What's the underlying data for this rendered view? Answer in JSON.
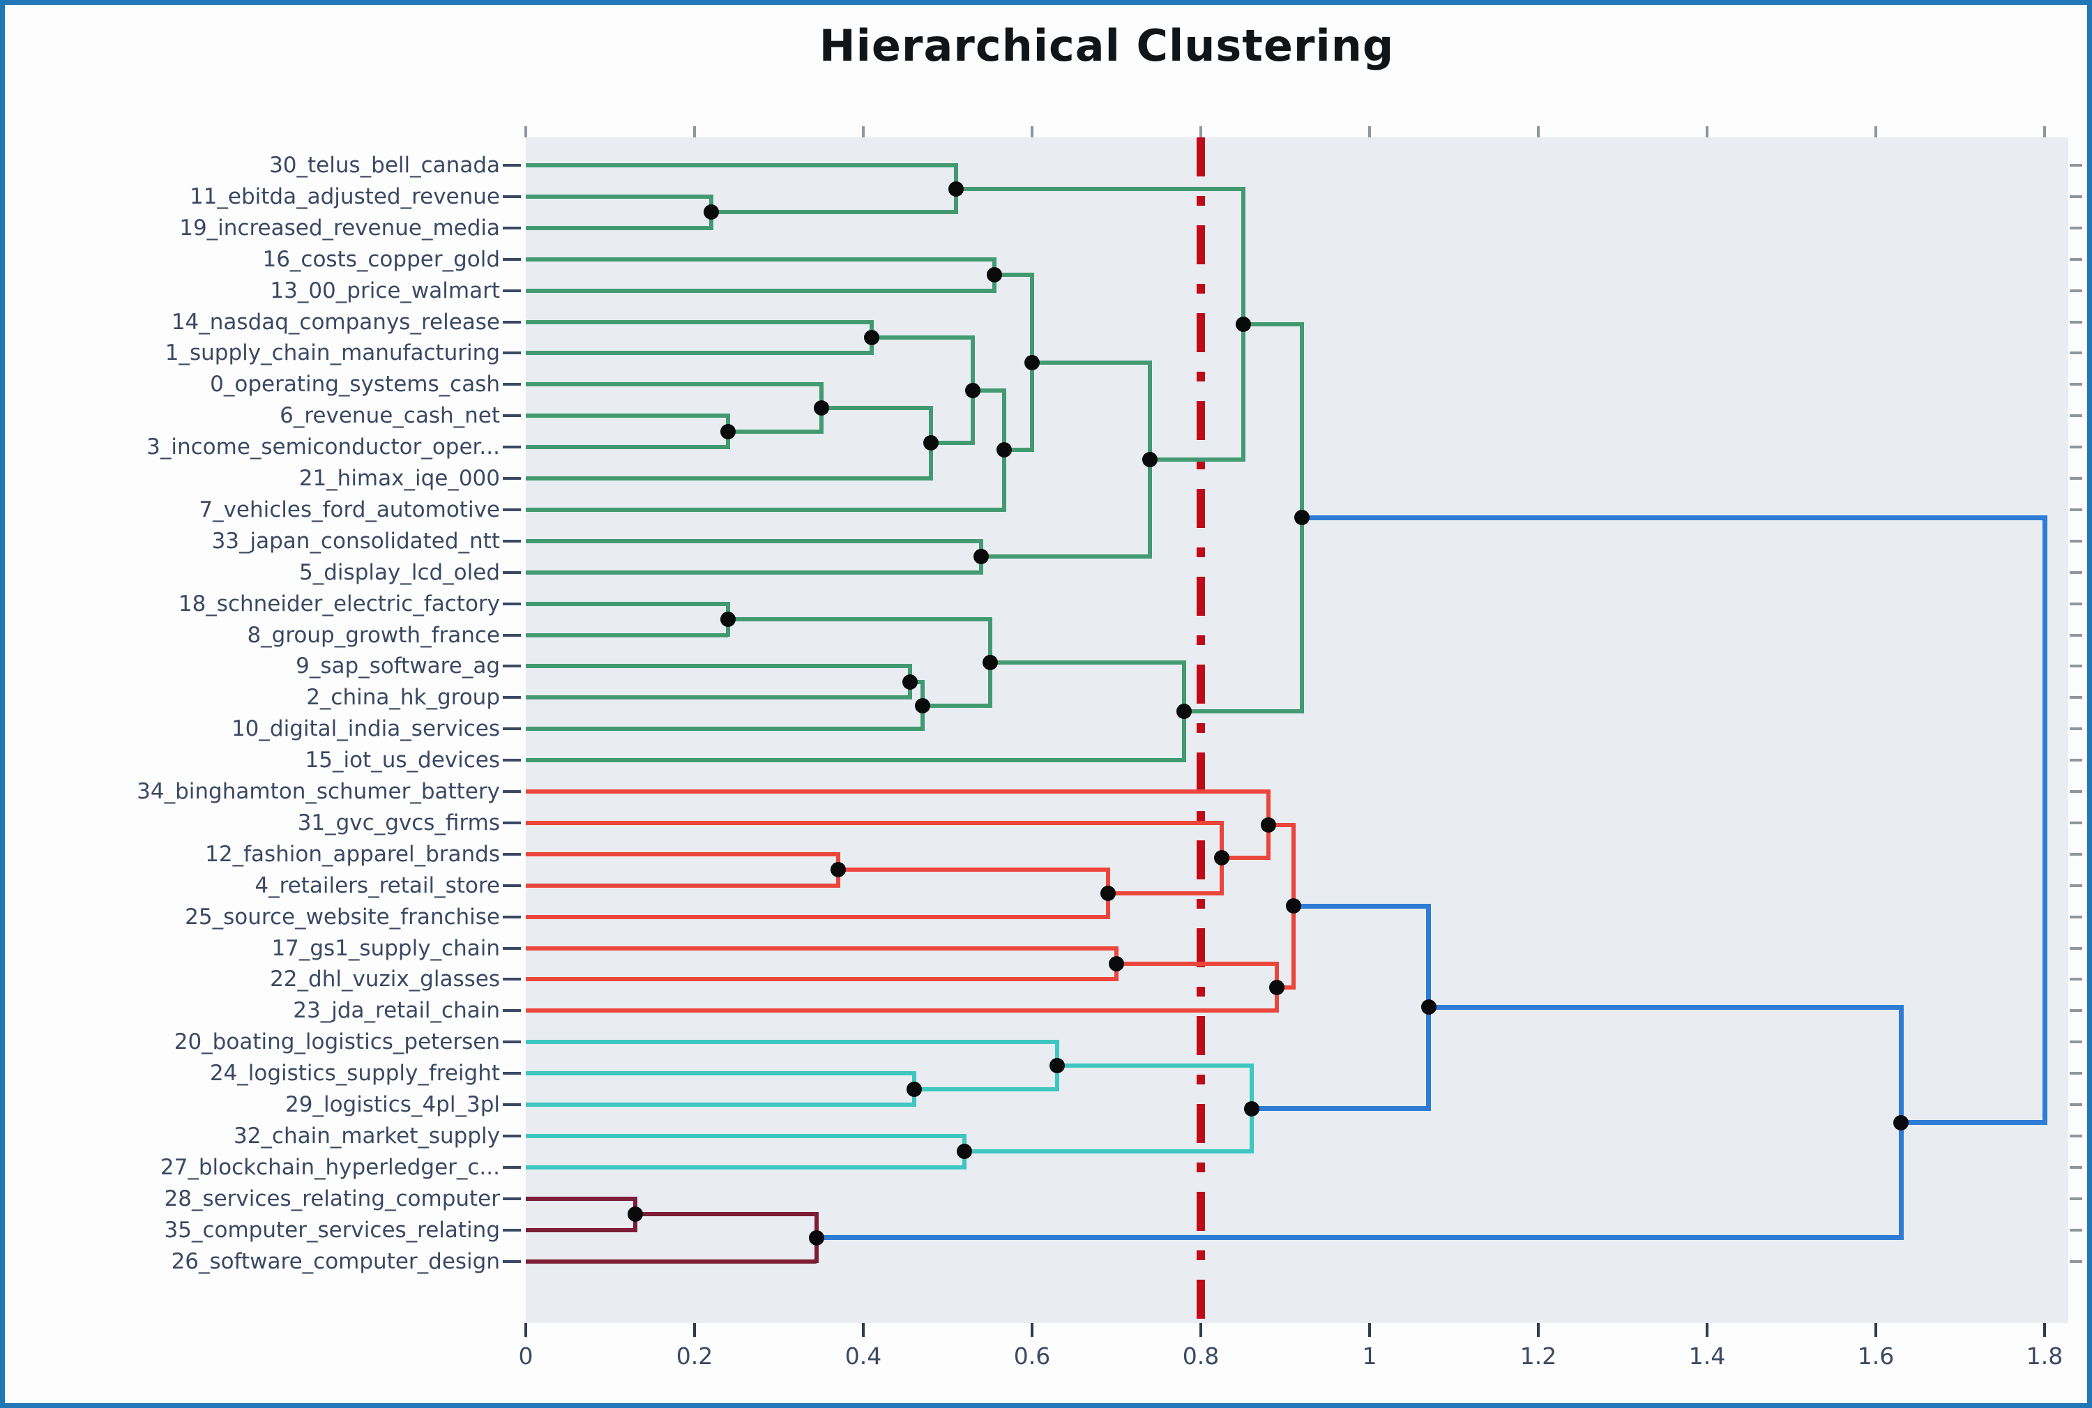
{
  "title": "Hierarchical Clustering",
  "x_axis": {
    "ticks": [
      {
        "v": 0.0,
        "label": "0"
      },
      {
        "v": 0.2,
        "label": "0.2"
      },
      {
        "v": 0.4,
        "label": "0.4"
      },
      {
        "v": 0.6,
        "label": "0.6"
      },
      {
        "v": 0.8,
        "label": "0.8"
      },
      {
        "v": 1.0,
        "label": "1"
      },
      {
        "v": 1.2,
        "label": "1.2"
      },
      {
        "v": 1.4,
        "label": "1.4"
      },
      {
        "v": 1.6,
        "label": "1.6"
      },
      {
        "v": 1.8,
        "label": "1.8"
      }
    ]
  },
  "threshold_line": {
    "value": 0.8,
    "color": "#c00a18",
    "style": "dash-dot"
  },
  "colors": {
    "frame_border": "#2277b9",
    "plot_background": "#e9edf1",
    "label_text": "#3a4963",
    "title_text": "#111518",
    "merge_dot": "#0a0a0a",
    "cluster_green": "#429a71",
    "cluster_red": "#ec453c",
    "cluster_cyan": "#3ec6c0",
    "cluster_maroon": "#7d1d36",
    "link_blue": "#2d7cd6"
  },
  "chart_data": {
    "type": "dendrogram",
    "orientation": "horizontal_left_labels",
    "title": "Hierarchical Clustering",
    "xlim": [
      0,
      1.83
    ],
    "grid": false,
    "legend": null,
    "color_threshold": 0.8,
    "leaves": [
      "30_telus_bell_canada",
      "11_ebitda_adjusted_revenue",
      "19_increased_revenue_media",
      "16_costs_copper_gold",
      "13_00_price_walmart",
      "14_nasdaq_companys_release",
      "1_supply_chain_manufacturing",
      "0_operating_systems_cash",
      "6_revenue_cash_net",
      "3_income_semiconductor_oper...",
      "21_himax_iqe_000",
      "7_vehicles_ford_automotive",
      "33_japan_consolidated_ntt",
      "5_display_lcd_oled",
      "18_schneider_electric_factory",
      "8_group_growth_france",
      "9_sap_software_ag",
      "2_china_hk_group",
      "10_digital_india_services",
      "15_iot_us_devices",
      "34_binghamton_schumer_battery",
      "31_gvc_gvcs_firms",
      "12_fashion_apparel_brands",
      "4_retailers_retail_store",
      "25_source_website_franchise",
      "17_gs1_supply_chain",
      "22_dhl_vuzix_glasses",
      "23_jda_retail_chain",
      "20_boating_logistics_petersen",
      "24_logistics_supply_freight",
      "29_logistics_4pl_3pl",
      "32_chain_market_supply",
      "27_blockchain_hyperledger_c...",
      "28_services_relating_computer",
      "35_computer_services_relating",
      "26_software_computer_design"
    ],
    "merges": [
      {
        "id": "g1",
        "a": "L1",
        "b": "L2",
        "d": 0.22,
        "c": "green"
      },
      {
        "id": "g2",
        "a": "L0",
        "b": "g1",
        "d": 0.51,
        "c": "green"
      },
      {
        "id": "g3",
        "a": "L3",
        "b": "L4",
        "d": 0.555,
        "c": "green"
      },
      {
        "id": "g4",
        "a": "L5",
        "b": "L6",
        "d": 0.41,
        "c": "green"
      },
      {
        "id": "g5",
        "a": "L8",
        "b": "L9",
        "d": 0.24,
        "c": "green"
      },
      {
        "id": "g6",
        "a": "L7",
        "b": "g5",
        "d": 0.35,
        "c": "green"
      },
      {
        "id": "g7",
        "a": "g6",
        "b": "L10",
        "d": 0.48,
        "c": "green"
      },
      {
        "id": "g8",
        "a": "g4",
        "b": "g7",
        "d": 0.53,
        "c": "green"
      },
      {
        "id": "g8b",
        "a": "g8",
        "b": "L11",
        "d": 0.567,
        "c": "green"
      },
      {
        "id": "g9",
        "a": "g3",
        "b": "g8b",
        "d": 0.6,
        "c": "green"
      },
      {
        "id": "g10",
        "a": "L12",
        "b": "L13",
        "d": 0.54,
        "c": "green"
      },
      {
        "id": "g12",
        "a": "g9",
        "b": "g10",
        "d": 0.74,
        "c": "green"
      },
      {
        "id": "g13",
        "a": "g2",
        "b": "g12",
        "d": 0.85,
        "c": "green"
      },
      {
        "id": "g14",
        "a": "L14",
        "b": "L15",
        "d": 0.24,
        "c": "green"
      },
      {
        "id": "g15",
        "a": "L16",
        "b": "L17",
        "d": 0.455,
        "c": "green"
      },
      {
        "id": "g16",
        "a": "g15",
        "b": "L18",
        "d": 0.47,
        "c": "green"
      },
      {
        "id": "g17",
        "a": "g14",
        "b": "g16",
        "d": 0.55,
        "c": "green"
      },
      {
        "id": "g18",
        "a": "g17",
        "b": "L19",
        "d": 0.78,
        "c": "green"
      },
      {
        "id": "g19",
        "a": "g13",
        "b": "g18",
        "d": 0.92,
        "c": "green"
      },
      {
        "id": "r1",
        "a": "L22",
        "b": "L23",
        "d": 0.37,
        "c": "red"
      },
      {
        "id": "r2",
        "a": "r1",
        "b": "L24",
        "d": 0.69,
        "c": "red"
      },
      {
        "id": "r3",
        "a": "L21",
        "b": "r2",
        "d": 0.825,
        "c": "red"
      },
      {
        "id": "r4",
        "a": "L20",
        "b": "r3",
        "d": 0.88,
        "c": "red"
      },
      {
        "id": "r5",
        "a": "L25",
        "b": "L26",
        "d": 0.7,
        "c": "red"
      },
      {
        "id": "r6",
        "a": "r5",
        "b": "L27",
        "d": 0.89,
        "c": "red"
      },
      {
        "id": "r7",
        "a": "r4",
        "b": "r6",
        "d": 0.91,
        "c": "red"
      },
      {
        "id": "c1",
        "a": "L29",
        "b": "L30",
        "d": 0.46,
        "c": "cyan"
      },
      {
        "id": "c2",
        "a": "L28",
        "b": "c1",
        "d": 0.63,
        "c": "cyan"
      },
      {
        "id": "c3",
        "a": "L31",
        "b": "L32",
        "d": 0.52,
        "c": "cyan"
      },
      {
        "id": "c4",
        "a": "c2",
        "b": "c3",
        "d": 0.86,
        "c": "cyan"
      },
      {
        "id": "m1",
        "a": "L33",
        "b": "L34",
        "d": 0.13,
        "c": "maroon"
      },
      {
        "id": "m2",
        "a": "m1",
        "b": "L35",
        "d": 0.345,
        "c": "maroon"
      },
      {
        "id": "x1",
        "a": "r7",
        "b": "c4",
        "d": 1.07,
        "c": "blue"
      },
      {
        "id": "x2",
        "a": "x1",
        "b": "m2",
        "d": 1.63,
        "c": "blue"
      },
      {
        "id": "root",
        "a": "g19",
        "b": "x2",
        "d": 1.8,
        "c": "blue",
        "nd": true
      }
    ]
  }
}
